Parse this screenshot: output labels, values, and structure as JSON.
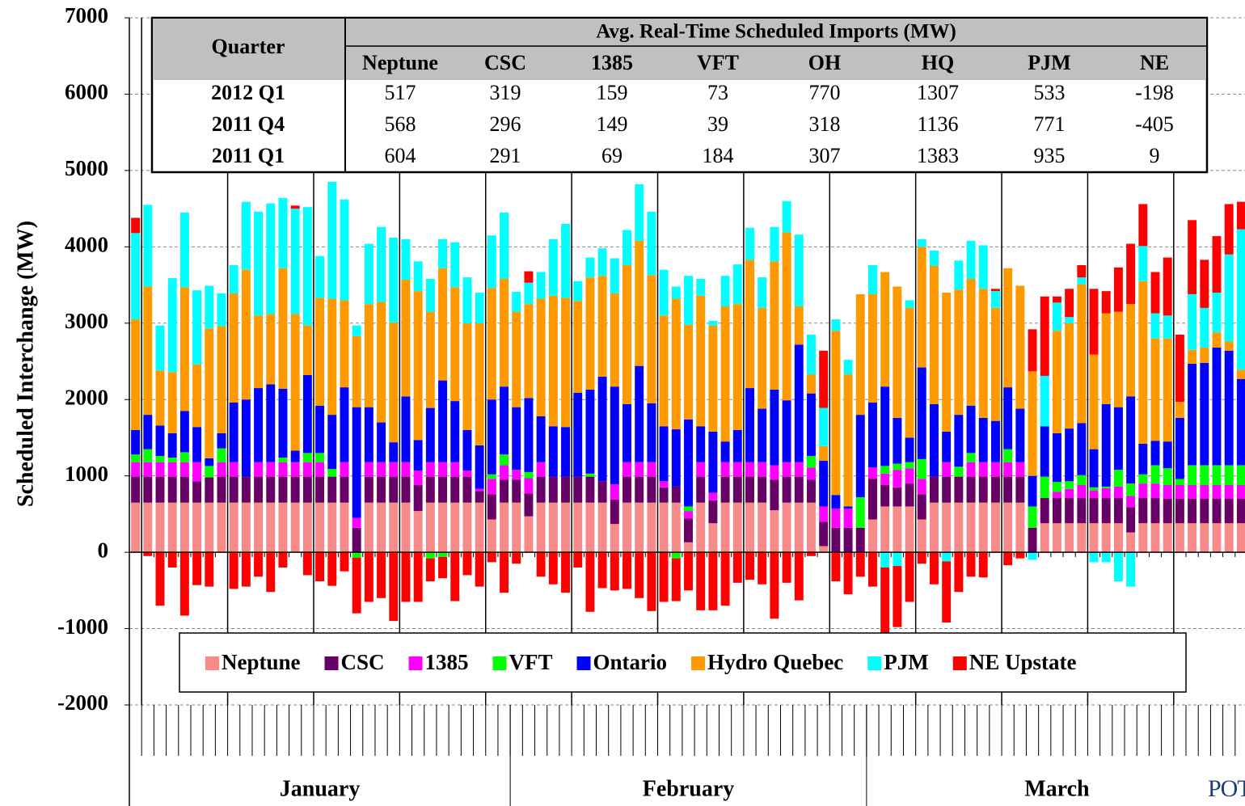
{
  "chart_data": {
    "type": "stacked-bar",
    "y_label": "Scheduled Interchange (MW)",
    "ylim": [
      -2000,
      7000
    ],
    "yticks": [
      -2000,
      -1000,
      0,
      1000,
      2000,
      3000,
      4000,
      5000,
      6000,
      7000
    ],
    "grid": true,
    "legend": "bottom",
    "logo": "POTOMAC",
    "categories": [
      "January",
      "January",
      "January",
      "January",
      "January",
      "January",
      "January",
      "January",
      "January",
      "January",
      "January",
      "January",
      "January",
      "January",
      "January",
      "January",
      "January",
      "January",
      "January",
      "January",
      "January",
      "January",
      "January",
      "January",
      "January",
      "January",
      "January",
      "January",
      "January",
      "January",
      "January",
      "February",
      "February",
      "February",
      "February",
      "February",
      "February",
      "February",
      "February",
      "February",
      "February",
      "February",
      "February",
      "February",
      "February",
      "February",
      "February",
      "February",
      "February",
      "February",
      "February",
      "February",
      "February",
      "February",
      "February",
      "February",
      "February",
      "February",
      "February",
      "February",
      "March",
      "March",
      "March",
      "March",
      "March",
      "March",
      "March",
      "March",
      "March",
      "March",
      "March",
      "March",
      "March",
      "March",
      "March",
      "March",
      "March",
      "March",
      "March",
      "March",
      "March",
      "March",
      "March",
      "March",
      "March",
      "March",
      "March",
      "March",
      "March",
      "March",
      "March"
    ],
    "series": [
      {
        "name": "Neptune",
        "color": "#f98a8a",
        "values": [
          650,
          650,
          650,
          650,
          650,
          650,
          650,
          650,
          650,
          650,
          650,
          650,
          650,
          650,
          650,
          650,
          650,
          650,
          0,
          650,
          650,
          650,
          650,
          540,
          650,
          650,
          650,
          650,
          650,
          430,
          650,
          650,
          470,
          650,
          650,
          650,
          650,
          650,
          650,
          370,
          650,
          650,
          650,
          650,
          650,
          130,
          650,
          380,
          650,
          650,
          650,
          650,
          550,
          650,
          650,
          650,
          80,
          0,
          0,
          0,
          430,
          600,
          600,
          600,
          430,
          650,
          650,
          650,
          650,
          650,
          650,
          650,
          650,
          0,
          380,
          380,
          380,
          380,
          380,
          380,
          380,
          260,
          380,
          380,
          380,
          380,
          380,
          380,
          380,
          380,
          380
        ]
      },
      {
        "name": "CSC",
        "color": "#660066",
        "values": [
          340,
          340,
          340,
          340,
          340,
          280,
          330,
          340,
          340,
          340,
          340,
          340,
          340,
          340,
          340,
          340,
          340,
          340,
          320,
          340,
          340,
          340,
          340,
          340,
          340,
          340,
          340,
          340,
          150,
          330,
          300,
          300,
          300,
          340,
          340,
          340,
          340,
          340,
          280,
          320,
          340,
          340,
          340,
          200,
          210,
          310,
          340,
          300,
          340,
          340,
          340,
          340,
          400,
          340,
          340,
          300,
          320,
          320,
          320,
          320,
          530,
          280,
          250,
          300,
          330,
          340,
          340,
          340,
          340,
          340,
          340,
          340,
          340,
          320,
          330,
          330,
          330,
          330,
          330,
          330,
          330,
          330,
          330,
          330,
          320,
          320,
          320,
          320,
          320,
          320,
          320
        ]
      },
      {
        "name": "1385",
        "color": "#ff00ff",
        "values": [
          190,
          190,
          190,
          190,
          190,
          250,
          0,
          190,
          190,
          0,
          190,
          190,
          190,
          190,
          190,
          190,
          0,
          190,
          130,
          190,
          190,
          190,
          190,
          190,
          190,
          190,
          190,
          80,
          30,
          200,
          190,
          130,
          200,
          190,
          0,
          0,
          0,
          0,
          0,
          200,
          190,
          190,
          190,
          80,
          0,
          100,
          190,
          100,
          190,
          190,
          190,
          190,
          190,
          190,
          190,
          160,
          200,
          250,
          250,
          0,
          150,
          150,
          230,
          200,
          200,
          0,
          190,
          0,
          190,
          190,
          190,
          190,
          190,
          0,
          0,
          80,
          120,
          170,
          100,
          130,
          150,
          150,
          190,
          190,
          180,
          180,
          180,
          180,
          180,
          180,
          180
        ]
      },
      {
        "name": "VFT",
        "color": "#00ff00",
        "values": [
          100,
          170,
          80,
          60,
          130,
          0,
          150,
          180,
          0,
          0,
          0,
          0,
          60,
          0,
          120,
          120,
          100,
          0,
          -70,
          0,
          0,
          0,
          0,
          0,
          -80,
          -60,
          0,
          0,
          0,
          60,
          140,
          0,
          80,
          0,
          0,
          0,
          0,
          40,
          0,
          0,
          0,
          0,
          0,
          0,
          -80,
          60,
          0,
          0,
          0,
          0,
          0,
          0,
          0,
          0,
          0,
          150,
          0,
          0,
          0,
          400,
          0,
          100,
          80,
          80,
          260,
          0,
          0,
          130,
          120,
          0,
          0,
          170,
          0,
          280,
          280,
          130,
          100,
          130,
          40,
          20,
          220,
          160,
          120,
          240,
          220,
          80,
          260,
          260,
          260,
          260,
          260
        ]
      },
      {
        "name": "Ontario",
        "color": "#0000ff",
        "values": [
          320,
          450,
          400,
          320,
          540,
          460,
          100,
          200,
          780,
          1010,
          970,
          1020,
          900,
          150,
          1020,
          620,
          710,
          980,
          1450,
          720,
          520,
          260,
          860,
          400,
          710,
          1070,
          800,
          530,
          570,
          980,
          890,
          820,
          970,
          600,
          660,
          650,
          1100,
          1100,
          1370,
          1280,
          760,
          1260,
          770,
          720,
          750,
          1140,
          470,
          800,
          270,
          420,
          970,
          700,
          990,
          810,
          1540,
          820,
          600,
          180,
          30,
          1080,
          850,
          1040,
          600,
          320,
          1200,
          950,
          400,
          680,
          620,
          580,
          540,
          810,
          700,
          400,
          660,
          640,
          690,
          680,
          500,
          1080,
          820,
          1140,
          400,
          320,
          350,
          800,
          1330,
          1340,
          1540,
          1500,
          1130
        ]
      },
      {
        "name": "Hydro Quebec",
        "color": "#ff9900",
        "values": [
          1450,
          1680,
          720,
          800,
          1620,
          820,
          1700,
          1400,
          1430,
          1700,
          950,
          920,
          1580,
          1790,
          650,
          1410,
          1520,
          1140,
          930,
          1350,
          1580,
          1570,
          1530,
          1950,
          1260,
          1470,
          1490,
          1400,
          1600,
          1460,
          1410,
          1250,
          1230,
          1540,
          1710,
          1690,
          1200,
          1470,
          1320,
          1220,
          1820,
          1640,
          1680,
          1450,
          1710,
          1240,
          1710,
          1390,
          1770,
          1650,
          1680,
          1320,
          1680,
          2200,
          500,
          250,
          190,
          2150,
          1730,
          1580,
          1420,
          1500,
          1720,
          1700,
          1580,
          1810,
          1820,
          1640,
          1660,
          1690,
          1480,
          1560,
          1610,
          1370,
          0,
          1340,
          1380,
          1820,
          1240,
          1190,
          1250,
          1210,
          2130,
          1340,
          1350,
          210,
          180,
          200,
          200,
          120,
          120
        ]
      },
      {
        "name": "PJM",
        "color": "#00ffff",
        "values": [
          1130,
          1070,
          590,
          1230,
          980,
          970,
          560,
          430,
          370,
          890,
          1360,
          1450,
          920,
          1380,
          1550,
          550,
          1530,
          1320,
          140,
          790,
          980,
          1110,
          530,
          390,
          430,
          380,
          590,
          600,
          400,
          690,
          870,
          260,
          280,
          350,
          740,
          970,
          260,
          260,
          360,
          460,
          460,
          740,
          830,
          600,
          160,
          640,
          220,
          60,
          400,
          520,
          420,
          400,
          450,
          410,
          940,
          520,
          500,
          150,
          190,
          0,
          380,
          -200,
          -180,
          100,
          100,
          200,
          -120,
          380,
          500,
          570,
          220,
          0,
          0,
          -100,
          660,
          370,
          80,
          90,
          -130,
          -130,
          -380,
          -450,
          460,
          330,
          300,
          0,
          730,
          520,
          520,
          1140,
          1840
        ]
      },
      {
        "name": "NE Upstate",
        "color": "#ff0000",
        "values": [
          200,
          -50,
          -700,
          -200,
          -830,
          -430,
          -450,
          0,
          -480,
          -450,
          -320,
          -520,
          -200,
          40,
          -300,
          -380,
          -440,
          -250,
          -730,
          -650,
          -600,
          -900,
          -650,
          -650,
          -300,
          -280,
          -640,
          -300,
          -450,
          -130,
          -530,
          -150,
          150,
          -320,
          -420,
          -530,
          -200,
          -780,
          -470,
          -500,
          -480,
          -600,
          -770,
          -650,
          -560,
          -500,
          -760,
          -760,
          -700,
          -400,
          -360,
          -420,
          -870,
          -400,
          -630,
          -50,
          750,
          -380,
          -550,
          -320,
          -450,
          -900,
          -800,
          -650,
          -150,
          -420,
          -800,
          -520,
          -320,
          -330,
          30,
          -170,
          -80,
          550,
          1040,
          80,
          370,
          160,
          860,
          290,
          580,
          790,
          550,
          540,
          760,
          880,
          970,
          630,
          740,
          660,
          360
        ]
      }
    ],
    "table": {
      "row_header": "Quarter",
      "columns_title": "Avg. Real-Time Scheduled Imports (MW)",
      "columns": [
        "Neptune",
        "CSC",
        "1385",
        "VFT",
        "OH",
        "HQ",
        "PJM",
        "NE"
      ],
      "rows": [
        {
          "label": "2012 Q1",
          "values": [
            517,
            319,
            159,
            73,
            770,
            1307,
            533,
            -198
          ]
        },
        {
          "label": "2011 Q4",
          "values": [
            568,
            296,
            149,
            39,
            318,
            1136,
            771,
            -405
          ]
        },
        {
          "label": "2011 Q1",
          "values": [
            604,
            291,
            69,
            184,
            307,
            1383,
            935,
            9
          ]
        }
      ]
    }
  }
}
